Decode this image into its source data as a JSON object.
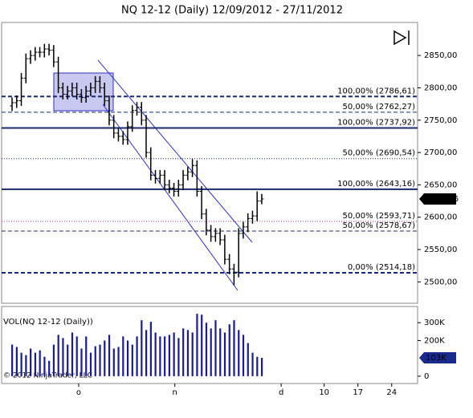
{
  "chart_data": [
    {
      "type": "ohlc",
      "title": "NQ 12-12 (Daily)  12/09/2012 - 27/11/2012",
      "color": "#000000",
      "x": [
        0,
        1,
        2,
        3,
        4,
        5,
        6,
        7,
        8,
        9,
        10,
        11,
        12,
        13,
        14,
        15,
        16,
        17,
        18,
        19,
        20,
        21,
        22,
        23,
        24,
        25,
        26,
        27,
        28,
        29,
        30,
        31,
        32,
        33,
        34,
        35,
        36,
        37,
        38,
        39,
        40,
        41,
        42,
        43,
        44,
        45,
        46,
        47,
        48,
        49,
        50,
        51,
        52,
        53,
        54
      ],
      "open": [
        2772,
        2777,
        2780,
        2815,
        2845,
        2850,
        2855,
        2855,
        2860,
        2858,
        2840,
        2800,
        2790,
        2795,
        2800,
        2790,
        2785,
        2795,
        2800,
        2810,
        2800,
        2780,
        2750,
        2730,
        2725,
        2720,
        2740,
        2765,
        2770,
        2750,
        2700,
        2665,
        2660,
        2665,
        2650,
        2645,
        2640,
        2650,
        2665,
        2670,
        2680,
        2640,
        2605,
        2580,
        2570,
        2575,
        2565,
        2535,
        2520,
        2515,
        2575,
        2585,
        2598,
        2602,
        2625
      ],
      "high": [
        2785,
        2788,
        2823,
        2853,
        2858,
        2863,
        2863,
        2868,
        2868,
        2866,
        2848,
        2808,
        2803,
        2808,
        2808,
        2798,
        2803,
        2808,
        2818,
        2818,
        2808,
        2788,
        2758,
        2738,
        2733,
        2748,
        2773,
        2778,
        2778,
        2758,
        2708,
        2673,
        2673,
        2673,
        2658,
        2653,
        2658,
        2673,
        2678,
        2690,
        2688,
        2648,
        2613,
        2588,
        2583,
        2583,
        2573,
        2543,
        2528,
        2583,
        2593,
        2606,
        2610,
        2640,
        2636
      ],
      "low": [
        2764,
        2769,
        2772,
        2807,
        2837,
        2842,
        2847,
        2847,
        2850,
        2832,
        2792,
        2782,
        2782,
        2787,
        2782,
        2777,
        2777,
        2787,
        2792,
        2792,
        2772,
        2742,
        2722,
        2717,
        2712,
        2712,
        2732,
        2757,
        2742,
        2692,
        2657,
        2652,
        2652,
        2642,
        2637,
        2632,
        2632,
        2642,
        2657,
        2662,
        2632,
        2597,
        2572,
        2562,
        2562,
        2557,
        2527,
        2512,
        2495,
        2507,
        2567,
        2577,
        2590,
        2594,
        2620
      ],
      "close": [
        2777,
        2780,
        2815,
        2845,
        2850,
        2855,
        2855,
        2860,
        2858,
        2840,
        2800,
        2790,
        2795,
        2800,
        2790,
        2785,
        2795,
        2800,
        2810,
        2800,
        2780,
        2750,
        2730,
        2725,
        2720,
        2740,
        2765,
        2770,
        2750,
        2700,
        2665,
        2660,
        2665,
        2650,
        2645,
        2640,
        2650,
        2665,
        2670,
        2680,
        2640,
        2605,
        2580,
        2570,
        2575,
        2565,
        2535,
        2520,
        2515,
        2575,
        2585,
        2598,
        2602,
        2625,
        2628.25
      ],
      "last_price": {
        "value": 2628.25,
        "label": "2628,25"
      },
      "xlim": [
        -2.26,
        87.7
      ],
      "ylim": [
        2467,
        2901
      ],
      "yticks": [
        {
          "value": 2500,
          "label": "2500,00"
        },
        {
          "value": 2550,
          "label": "2550,00"
        },
        {
          "value": 2600,
          "label": "2600,00"
        },
        {
          "value": 2650,
          "label": "2650,00"
        },
        {
          "value": 2700,
          "label": "2700,00"
        },
        {
          "value": 2750,
          "label": "2750,00"
        },
        {
          "value": 2800,
          "label": "2800,00"
        },
        {
          "value": 2850,
          "label": "2850,00"
        }
      ],
      "levels": [
        {
          "value": 2786.61,
          "label": "100,00% (2786,61)",
          "style": "dashed",
          "width": 2,
          "color": "#1a2a6c"
        },
        {
          "value": 2762.27,
          "label": "50,00% (2762,27)",
          "style": "dashed",
          "width": 1,
          "color": "#1a2a6c"
        },
        {
          "value": 2737.92,
          "label": "100,00% (2737,92)",
          "style": "solid",
          "width": 2,
          "color": "#1a2a6c"
        },
        {
          "value": 2690.54,
          "label": "50,00% (2690,54)",
          "style": "dotted",
          "width": 1,
          "color": "#1a2a6c"
        },
        {
          "value": 2643.16,
          "label": "100,00% (2643,16)",
          "style": "solid",
          "width": 2,
          "color": "#1a2a6c"
        },
        {
          "value": 2593.71,
          "label": "50,00% (2593,71)",
          "style": "dotted",
          "width": 1,
          "color": "#c0407a"
        },
        {
          "value": 2578.67,
          "label": "50,00% (2578,67)",
          "style": "dashed",
          "width": 1,
          "color": "#1a2a6c"
        },
        {
          "value": 2514.18,
          "label": "0,00% (2514,18)",
          "style": "dashed",
          "width": 2,
          "color": "#1a2a6c"
        }
      ]
    },
    {
      "type": "bar",
      "title": "VOL(NQ 12-12 (Daily))",
      "color": "#1a1a9a",
      "copyright": "© 2012 NinjaTrader, LLC",
      "x": [
        0,
        1,
        2,
        3,
        4,
        5,
        6,
        7,
        8,
        9,
        10,
        11,
        12,
        13,
        14,
        15,
        16,
        17,
        18,
        19,
        20,
        21,
        22,
        23,
        24,
        25,
        26,
        27,
        28,
        29,
        30,
        31,
        32,
        33,
        34,
        35,
        36,
        37,
        38,
        39,
        40,
        41,
        42,
        43,
        44,
        45,
        46,
        47,
        48,
        49,
        50,
        51,
        52,
        53,
        54
      ],
      "values": [
        177000,
        164000,
        132000,
        118000,
        155000,
        132000,
        145000,
        109000,
        86000,
        177000,
        232000,
        214000,
        177000,
        245000,
        223000,
        155000,
        223000,
        132000,
        168000,
        177000,
        200000,
        232000,
        155000,
        164000,
        223000,
        200000,
        177000,
        223000,
        314000,
        259000,
        305000,
        245000,
        223000,
        223000,
        232000,
        245000,
        214000,
        268000,
        259000,
        245000,
        350000,
        345000,
        300000,
        268000,
        314000,
        268000,
        245000,
        291000,
        314000,
        259000,
        232000,
        186000,
        132000,
        109000,
        103000
      ],
      "last_volume": {
        "value": 103000,
        "label": "103K"
      },
      "xlim": [
        -2.26,
        87.7
      ],
      "ylim": [
        -41000,
        391000
      ],
      "yticks": [
        {
          "value": 0,
          "label": "0"
        },
        {
          "value": 200000,
          "label": "200K"
        },
        {
          "value": 300000,
          "label": "300K"
        }
      ],
      "xticks": [
        {
          "value": 14.4,
          "label": "o"
        },
        {
          "value": 35.2,
          "label": "n"
        },
        {
          "value": 58.2,
          "label": "d"
        },
        {
          "value": 67.5,
          "label": "10"
        },
        {
          "value": 74.8,
          "label": "17"
        },
        {
          "value": 82.1,
          "label": "24"
        }
      ]
    }
  ]
}
